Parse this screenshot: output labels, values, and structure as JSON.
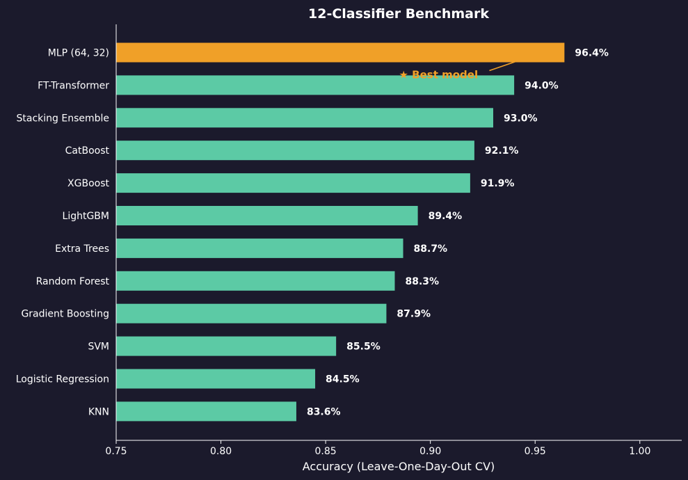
{
  "chart_data": {
    "type": "bar",
    "orientation": "horizontal",
    "title": "12-Classifier Benchmark",
    "xlabel": "Accuracy (Leave-One-Day-Out CV)",
    "ylabel": "",
    "xlim": [
      0.75,
      1.02
    ],
    "xticks": [
      "0.75",
      "0.80",
      "0.85",
      "0.90",
      "0.95",
      "1.00"
    ],
    "grid": false,
    "categories": [
      "MLP (64, 32)",
      "FT-Transformer",
      "Stacking Ensemble",
      "CatBoost",
      "XGBoost",
      "LightGBM",
      "Extra Trees",
      "Random Forest",
      "Gradient Boosting",
      "SVM",
      "Logistic Regression",
      "KNN"
    ],
    "values": [
      0.964,
      0.94,
      0.93,
      0.921,
      0.919,
      0.894,
      0.887,
      0.883,
      0.879,
      0.855,
      0.845,
      0.836
    ],
    "data_labels": [
      "96.4%",
      "94.0%",
      "93.0%",
      "92.1%",
      "91.9%",
      "89.4%",
      "88.7%",
      "88.3%",
      "87.9%",
      "85.5%",
      "84.5%",
      "83.6%"
    ],
    "highlight_index": 0,
    "annotation": {
      "text": "★ Best model",
      "target_index": 0
    },
    "colors": {
      "background": "#1b1a2c",
      "bar": "#5ccaa5",
      "highlight": "#f0a028",
      "text": "#ffffff",
      "axis": "#ffffff"
    }
  }
}
